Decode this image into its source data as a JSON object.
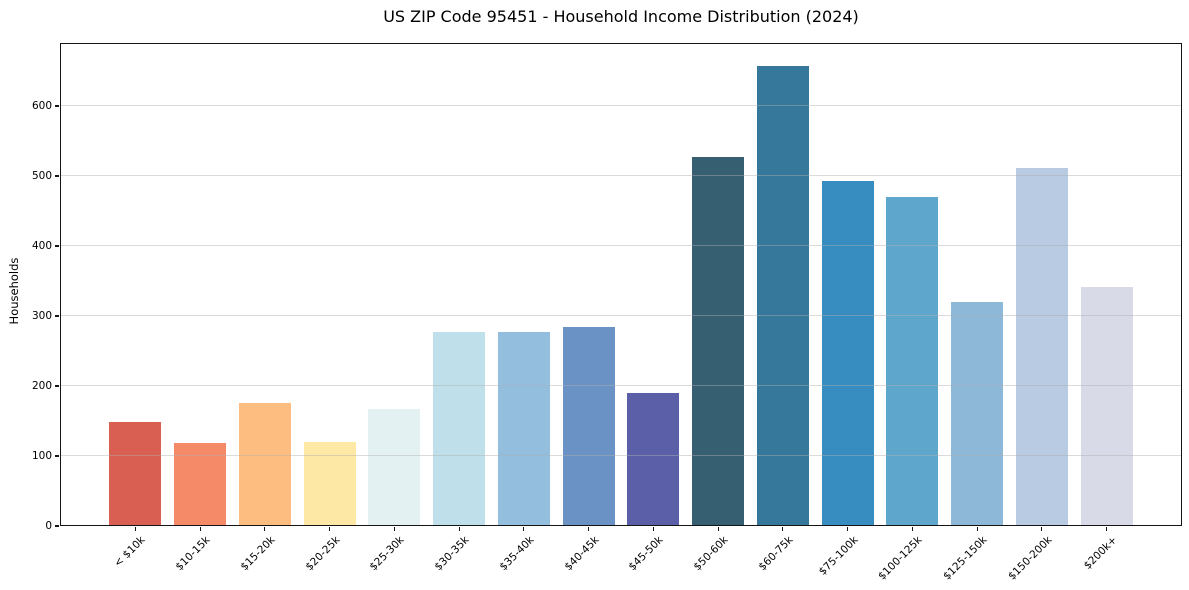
{
  "chart_data": {
    "type": "bar",
    "title": "US ZIP Code 95451 - Household Income Distribution (2024)",
    "xlabel": "",
    "ylabel": "Households",
    "categories": [
      "< $10k",
      "$10-15k",
      "$15-20k",
      "$20-25k",
      "$25-30k",
      "$30-35k",
      "$35-40k",
      "$40-45k",
      "$45-50k",
      "$50-60k",
      "$60-75k",
      "$75-100k",
      "$100-125k",
      "$125-150k",
      "$150-200k",
      "$200k+"
    ],
    "values": [
      148,
      118,
      176,
      120,
      167,
      277,
      277,
      285,
      190,
      527,
      657,
      493,
      470,
      320,
      511,
      342
    ],
    "bar_colors": [
      "#d95f52",
      "#f48a68",
      "#fdbd80",
      "#fde8a6",
      "#e4f1f2",
      "#bfdfea",
      "#93bedd",
      "#6a92c4",
      "#5a5fa8",
      "#365f72",
      "#35789c",
      "#388dc0",
      "#5fa6cc",
      "#8db8d8",
      "#b8cbe2",
      "#d8dae8"
    ],
    "yticks": [
      0,
      100,
      200,
      300,
      400,
      500,
      600
    ],
    "ylim": [
      0,
      690
    ],
    "grid": true,
    "legend_position": "none",
    "background_color": "#ffffff",
    "spine_color": "#141414"
  }
}
